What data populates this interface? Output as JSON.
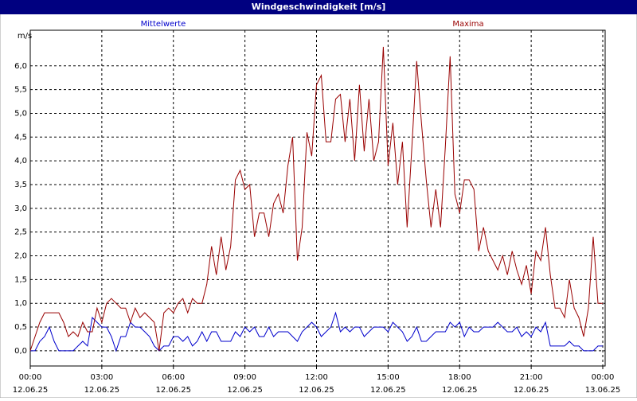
{
  "chart_data": {
    "type": "line",
    "title": "Windgeschwindigkeit [m/s]",
    "y_label": "m/s",
    "x": [
      0,
      0.2,
      0.4,
      0.6,
      0.8,
      1,
      1.2,
      1.4,
      1.6,
      1.8,
      2,
      2.2,
      2.4,
      2.6,
      2.8,
      3,
      3.2,
      3.4,
      3.6,
      3.8,
      4,
      4.2,
      4.4,
      4.6,
      4.8,
      5,
      5.2,
      5.4,
      5.6,
      5.8,
      6,
      6.2,
      6.4,
      6.6,
      6.8,
      7,
      7.2,
      7.4,
      7.6,
      7.8,
      8,
      8.2,
      8.4,
      8.6,
      8.8,
      9,
      9.2,
      9.4,
      9.6,
      9.8,
      10,
      10.2,
      10.4,
      10.6,
      10.8,
      11,
      11.2,
      11.4,
      11.6,
      11.8,
      12,
      12.2,
      12.4,
      12.6,
      12.8,
      13,
      13.2,
      13.4,
      13.6,
      13.8,
      14,
      14.2,
      14.4,
      14.6,
      14.8,
      15,
      15.2,
      15.4,
      15.6,
      15.8,
      16,
      16.2,
      16.4,
      16.6,
      16.8,
      17,
      17.2,
      17.4,
      17.6,
      17.8,
      18,
      18.2,
      18.4,
      18.6,
      18.8,
      19,
      19.2,
      19.4,
      19.6,
      19.8,
      20,
      20.2,
      20.4,
      20.6,
      20.8,
      21,
      21.2,
      21.4,
      21.6,
      21.8,
      22,
      22.2,
      22.4,
      22.6,
      22.8,
      23,
      23.2,
      23.4,
      23.6,
      23.8,
      24
    ],
    "series": [
      {
        "name": "Mittelwerte",
        "color": "#0000cc",
        "values": [
          0,
          0,
          0.2,
          0.3,
          0.5,
          0.2,
          0,
          0,
          0,
          0,
          0.1,
          0.2,
          0.1,
          0.7,
          0.6,
          0.5,
          0.5,
          0.3,
          0,
          0.3,
          0.3,
          0.6,
          0.5,
          0.5,
          0.4,
          0.3,
          0.1,
          0,
          0.1,
          0.1,
          0.3,
          0.3,
          0.2,
          0.3,
          0.1,
          0.2,
          0.4,
          0.2,
          0.4,
          0.4,
          0.2,
          0.2,
          0.2,
          0.4,
          0.3,
          0.5,
          0.4,
          0.5,
          0.3,
          0.3,
          0.5,
          0.3,
          0.4,
          0.4,
          0.4,
          0.3,
          0.2,
          0.4,
          0.5,
          0.6,
          0.5,
          0.3,
          0.4,
          0.5,
          0.8,
          0.4,
          0.5,
          0.4,
          0.5,
          0.5,
          0.3,
          0.4,
          0.5,
          0.5,
          0.5,
          0.4,
          0.6,
          0.5,
          0.4,
          0.2,
          0.3,
          0.5,
          0.2,
          0.2,
          0.3,
          0.4,
          0.4,
          0.4,
          0.6,
          0.5,
          0.6,
          0.3,
          0.5,
          0.4,
          0.4,
          0.5,
          0.5,
          0.5,
          0.6,
          0.5,
          0.4,
          0.4,
          0.5,
          0.3,
          0.4,
          0.3,
          0.5,
          0.4,
          0.6,
          0.1,
          0.1,
          0.1,
          0.1,
          0.2,
          0.1,
          0.1,
          0,
          0,
          0,
          0.1,
          0.1
        ]
      },
      {
        "name": "Maxima",
        "color": "#990000",
        "values": [
          0,
          0.3,
          0.6,
          0.8,
          0.8,
          0.8,
          0.8,
          0.6,
          0.3,
          0.4,
          0.3,
          0.6,
          0.4,
          0.4,
          0.9,
          0.6,
          1,
          1.1,
          1,
          0.9,
          0.9,
          0.6,
          0.9,
          0.7,
          0.8,
          0.7,
          0.6,
          0,
          0.8,
          0.9,
          0.8,
          1,
          1.1,
          0.8,
          1.1,
          1,
          1,
          1.4,
          2.2,
          1.6,
          2.4,
          1.7,
          2.2,
          3.6,
          3.8,
          3.4,
          3.5,
          2.4,
          2.9,
          2.9,
          2.4,
          3.1,
          3.3,
          2.9,
          3.9,
          4.5,
          1.9,
          2.6,
          4.6,
          4.1,
          5.6,
          5.8,
          4.4,
          4.4,
          5.3,
          5.4,
          4.4,
          5.3,
          4,
          5.6,
          4.2,
          5.3,
          4,
          4.4,
          6.4,
          3.9,
          4.8,
          3.5,
          4.4,
          2.6,
          4.3,
          6.1,
          4.8,
          3.6,
          2.6,
          3.4,
          2.6,
          4.3,
          6.2,
          3.3,
          2.9,
          3.6,
          3.6,
          3.4,
          2.1,
          2.6,
          2.1,
          1.9,
          1.7,
          2,
          1.6,
          2.1,
          1.7,
          1.4,
          1.8,
          1.2,
          2.1,
          1.9,
          2.6,
          1.6,
          0.9,
          0.9,
          0.7,
          1.5,
          0.9,
          0.7,
          0.3,
          0.9,
          2.4,
          1,
          1
        ]
      }
    ],
    "xlim": [
      0,
      24
    ],
    "xticks": [
      {
        "value": 0,
        "label": "00:00",
        "date": "12.06.25"
      },
      {
        "value": 3,
        "label": "03:00",
        "date": "12.06.25"
      },
      {
        "value": 6,
        "label": "06:00",
        "date": "12.06.25"
      },
      {
        "value": 9,
        "label": "09:00",
        "date": "12.06.25"
      },
      {
        "value": 12,
        "label": "12:00",
        "date": "12.06.25"
      },
      {
        "value": 15,
        "label": "15:00",
        "date": "12.06.25"
      },
      {
        "value": 18,
        "label": "18:00",
        "date": "12.06.25"
      },
      {
        "value": 21,
        "label": "21:00",
        "date": "12.06.25"
      },
      {
        "value": 24,
        "label": "00:00",
        "date": "13.06.25"
      }
    ],
    "ylim": [
      -0.32,
      6.75
    ],
    "yticks": [
      {
        "value": 0,
        "label": "0,0"
      },
      {
        "value": 0.5,
        "label": "0,5"
      },
      {
        "value": 1,
        "label": "1,0"
      },
      {
        "value": 1.5,
        "label": "1,5"
      },
      {
        "value": 2,
        "label": "2,0"
      },
      {
        "value": 2.5,
        "label": "2,5"
      },
      {
        "value": 3,
        "label": "3,0"
      },
      {
        "value": 3.5,
        "label": "3,5"
      },
      {
        "value": 4,
        "label": "4,0"
      },
      {
        "value": 4.5,
        "label": "4,5"
      },
      {
        "value": 5,
        "label": "5,0"
      },
      {
        "value": 5.5,
        "label": "5,5"
      },
      {
        "value": 6,
        "label": "6,0"
      }
    ],
    "grid": true
  }
}
